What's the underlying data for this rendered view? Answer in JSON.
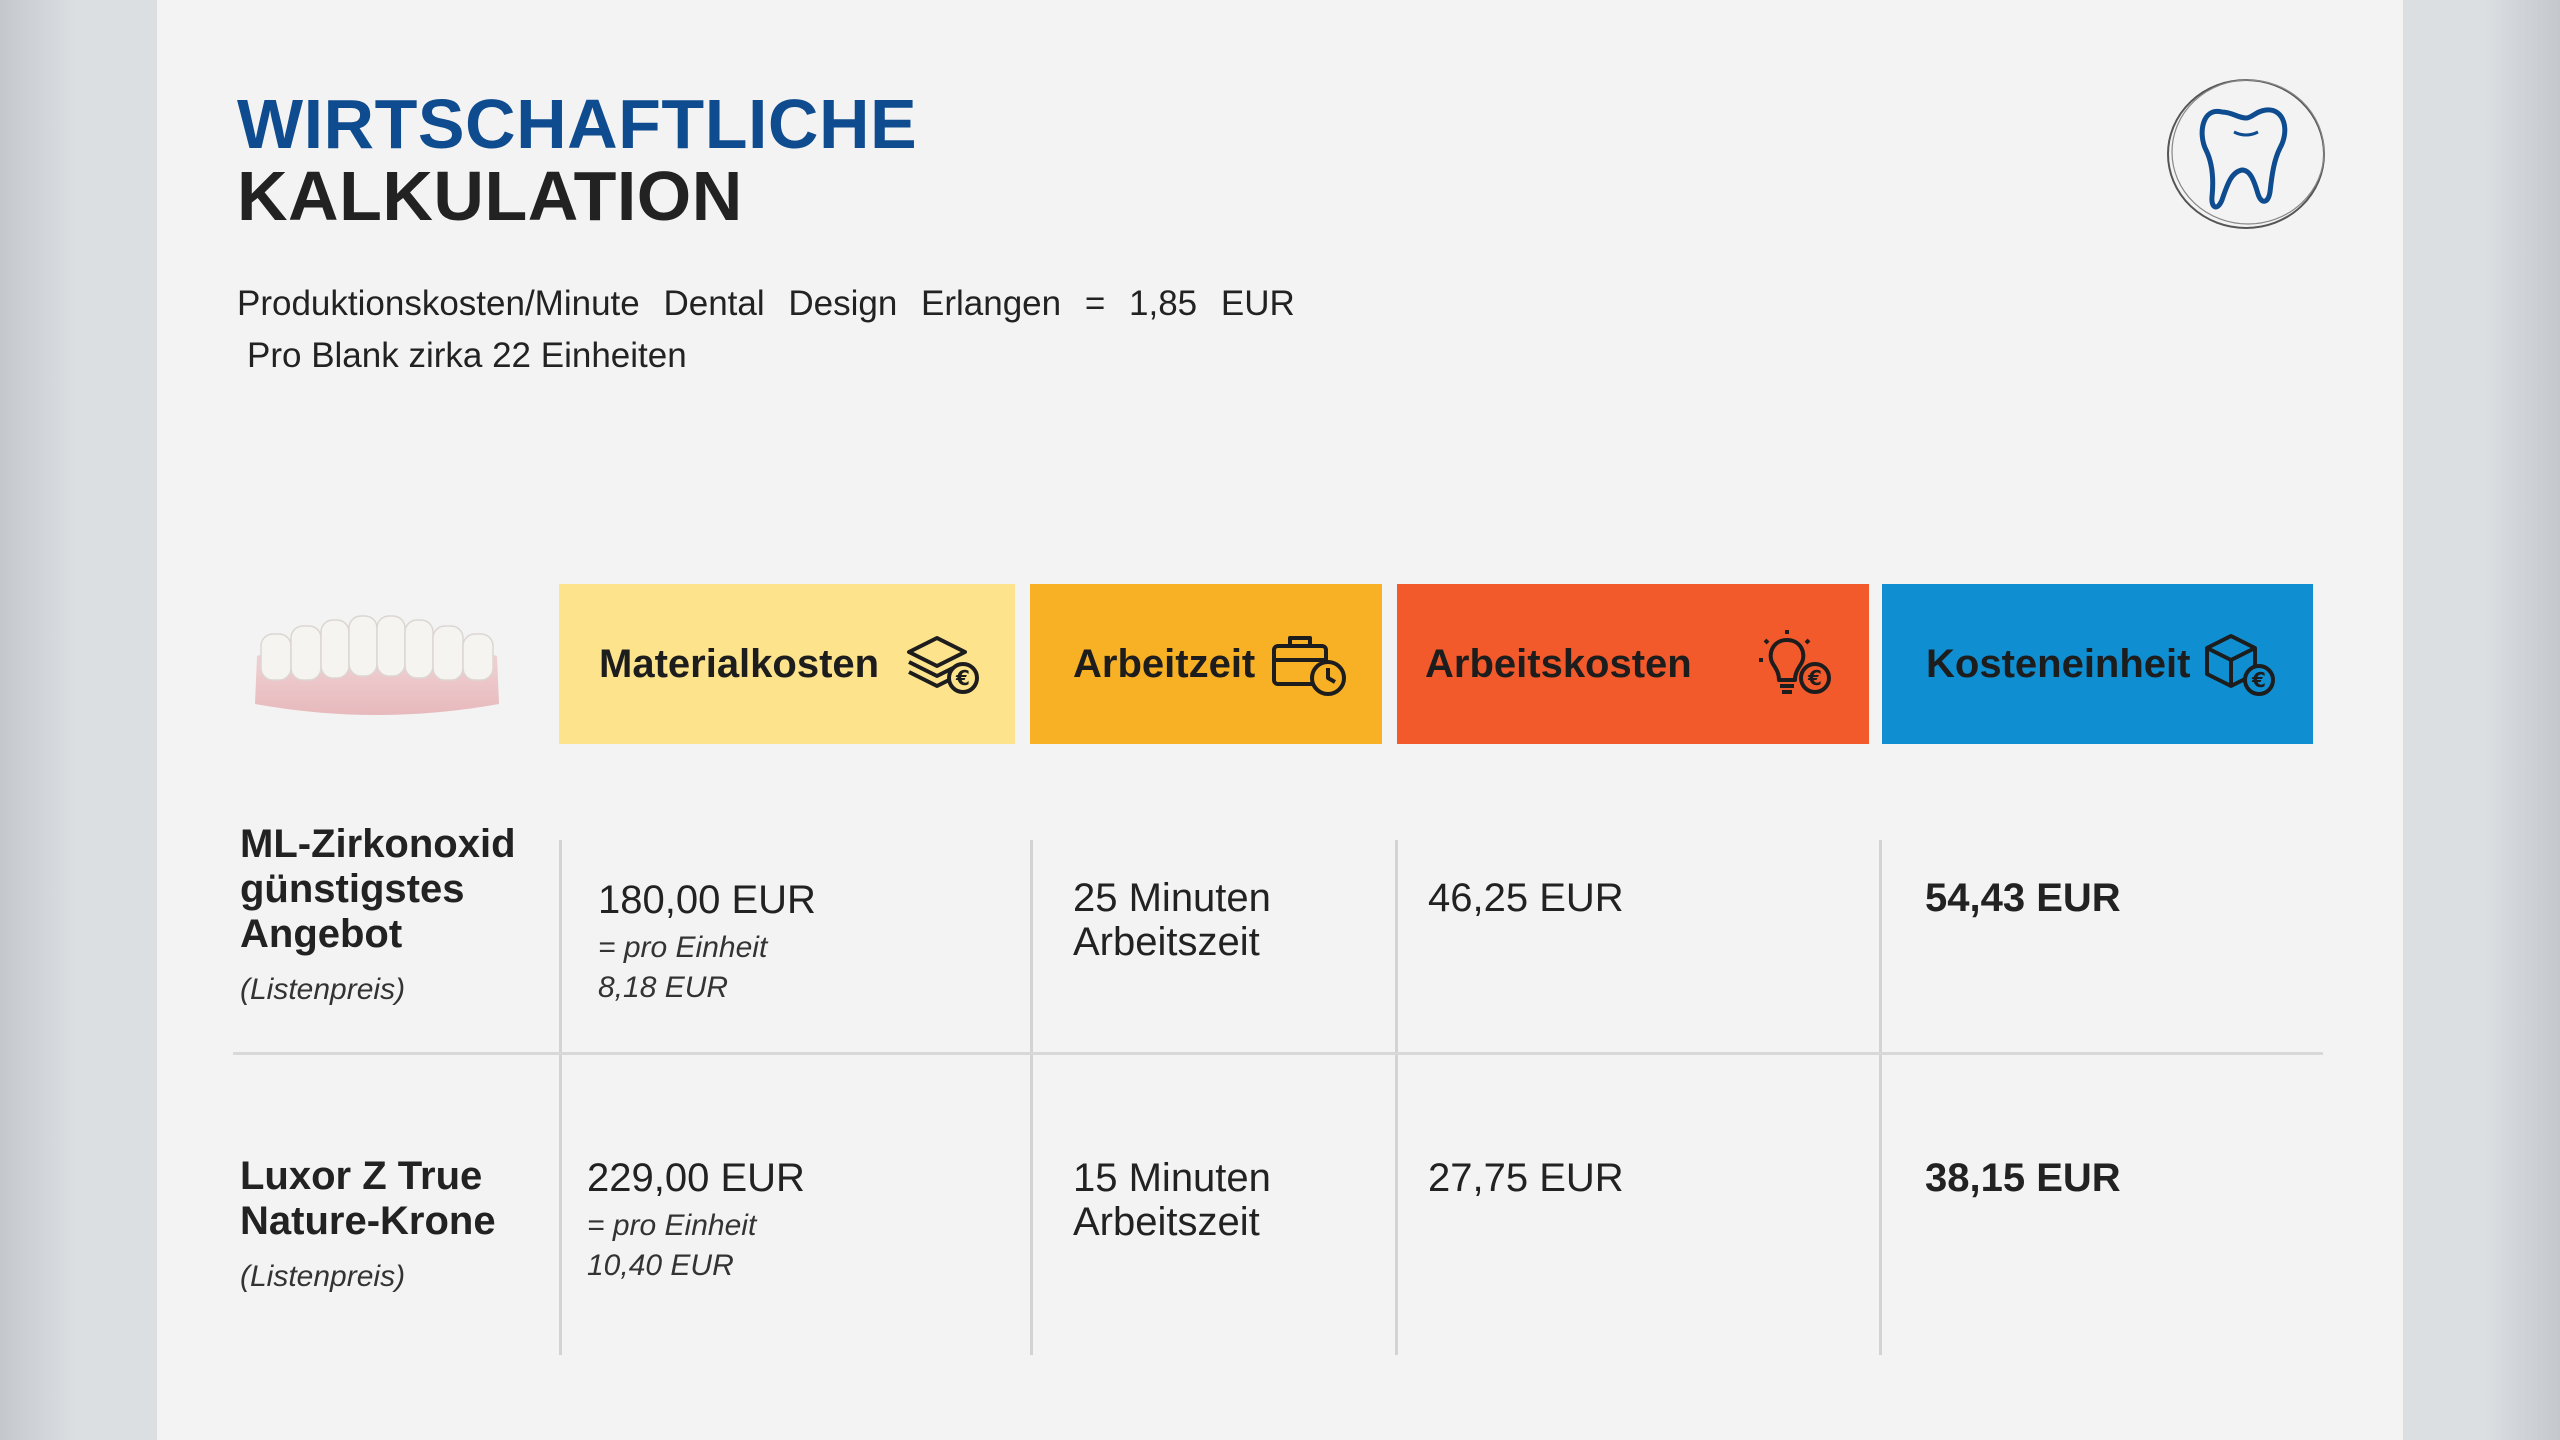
{
  "title": {
    "line1": "WIRTSCHAFTLICHE",
    "line2": "KALKULATION"
  },
  "subtitle": {
    "line1": "Produktionskosten/Minute Dental Design Erlangen = 1,85 EUR",
    "line2": "Pro Blank zirka 22 Einheiten"
  },
  "logo": {
    "icon": "tooth-logo-icon"
  },
  "colors": {
    "title_blue": "#0f4c8f",
    "material": "#fde38c",
    "arbeitzeit": "#f8b025",
    "arbeitskosten": "#f35a2b",
    "kosteneinheit": "#0f8fd2"
  },
  "headers": [
    {
      "label": "Materialkosten",
      "icon": "layers-euro-icon"
    },
    {
      "label": "Arbeitzeit",
      "icon": "briefcase-clock-icon"
    },
    {
      "label": "Arbeitskosten",
      "icon": "lightbulb-euro-icon"
    },
    {
      "label": "Kosteneinheit",
      "icon": "box-euro-icon"
    }
  ],
  "rows": [
    {
      "product": "ML-Zirkonoxid günstigstes Angebot",
      "product_lines": [
        "ML-Zirkonoxid",
        "günstigstes",
        "Angebot"
      ],
      "note": "(Listenpreis)",
      "material": "180,00 EUR",
      "material_sub1": "= pro Einheit",
      "material_sub2": "8,18 EUR",
      "time_line1": "25 Minuten",
      "time_line2": "Arbeitszeit",
      "labor": "46,25 EUR",
      "unit": "54,43 EUR"
    },
    {
      "product": "Luxor Z True Nature-Krone",
      "product_lines": [
        "Luxor Z True",
        "Nature-Krone"
      ],
      "note": "(Listenpreis)",
      "material": "229,00 EUR",
      "material_sub1": "= pro Einheit",
      "material_sub2": "10,40 EUR",
      "time_line1": "15 Minuten",
      "time_line2": "Arbeitszeit",
      "labor": "27,75 EUR",
      "unit": "38,15 EUR"
    }
  ]
}
